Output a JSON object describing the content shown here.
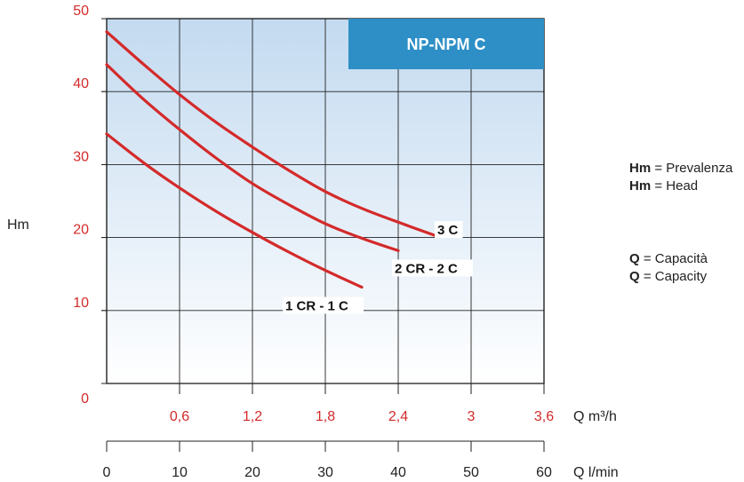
{
  "chart_data": {
    "type": "line",
    "title": "NP-NPM C",
    "ylabel": "Hm",
    "ylim": [
      0,
      50
    ],
    "y_ticks": [
      "0",
      "10",
      "20",
      "30",
      "40",
      "50"
    ],
    "x_primary": {
      "label": "Q m³/h",
      "range": [
        0,
        3.6
      ],
      "ticks": [
        "0,6",
        "1,2",
        "1,8",
        "2,4",
        "3",
        "3,6"
      ]
    },
    "x_secondary": {
      "label": "Q l/min",
      "range": [
        0,
        60
      ],
      "ticks": [
        "0",
        "10",
        "20",
        "30",
        "40",
        "50",
        "60"
      ]
    },
    "grid": true,
    "series": [
      {
        "name": "3 C",
        "color": "#d42a2a",
        "x": [
          0,
          0.3,
          0.6,
          0.9,
          1.2,
          1.5,
          1.8,
          2.1,
          2.4,
          2.7
        ],
        "y": [
          48.2,
          43.8,
          39.6,
          35.8,
          32.4,
          29.2,
          26.3,
          24.0,
          22.1,
          20.3
        ]
      },
      {
        "name": "2 CR - 2 C",
        "color": "#d42a2a",
        "x": [
          0,
          0.3,
          0.6,
          0.9,
          1.2,
          1.5,
          1.8,
          2.1,
          2.4
        ],
        "y": [
          43.7,
          39.0,
          34.8,
          30.9,
          27.4,
          24.5,
          21.9,
          19.9,
          18.2
        ]
      },
      {
        "name": "1 CR - 1 C",
        "color": "#d42a2a",
        "x": [
          0,
          0.3,
          0.6,
          0.9,
          1.2,
          1.5,
          1.8,
          2.1
        ],
        "y": [
          34.2,
          30.3,
          26.8,
          23.6,
          20.7,
          18.0,
          15.5,
          13.2
        ]
      }
    ]
  },
  "legend": {
    "hm_symbol": "Hm",
    "hm_it": "= Prevalenza",
    "hm_en": "= Head",
    "q_symbol": "Q",
    "q_it": "= Capacità",
    "q_en": "= Capacity"
  }
}
